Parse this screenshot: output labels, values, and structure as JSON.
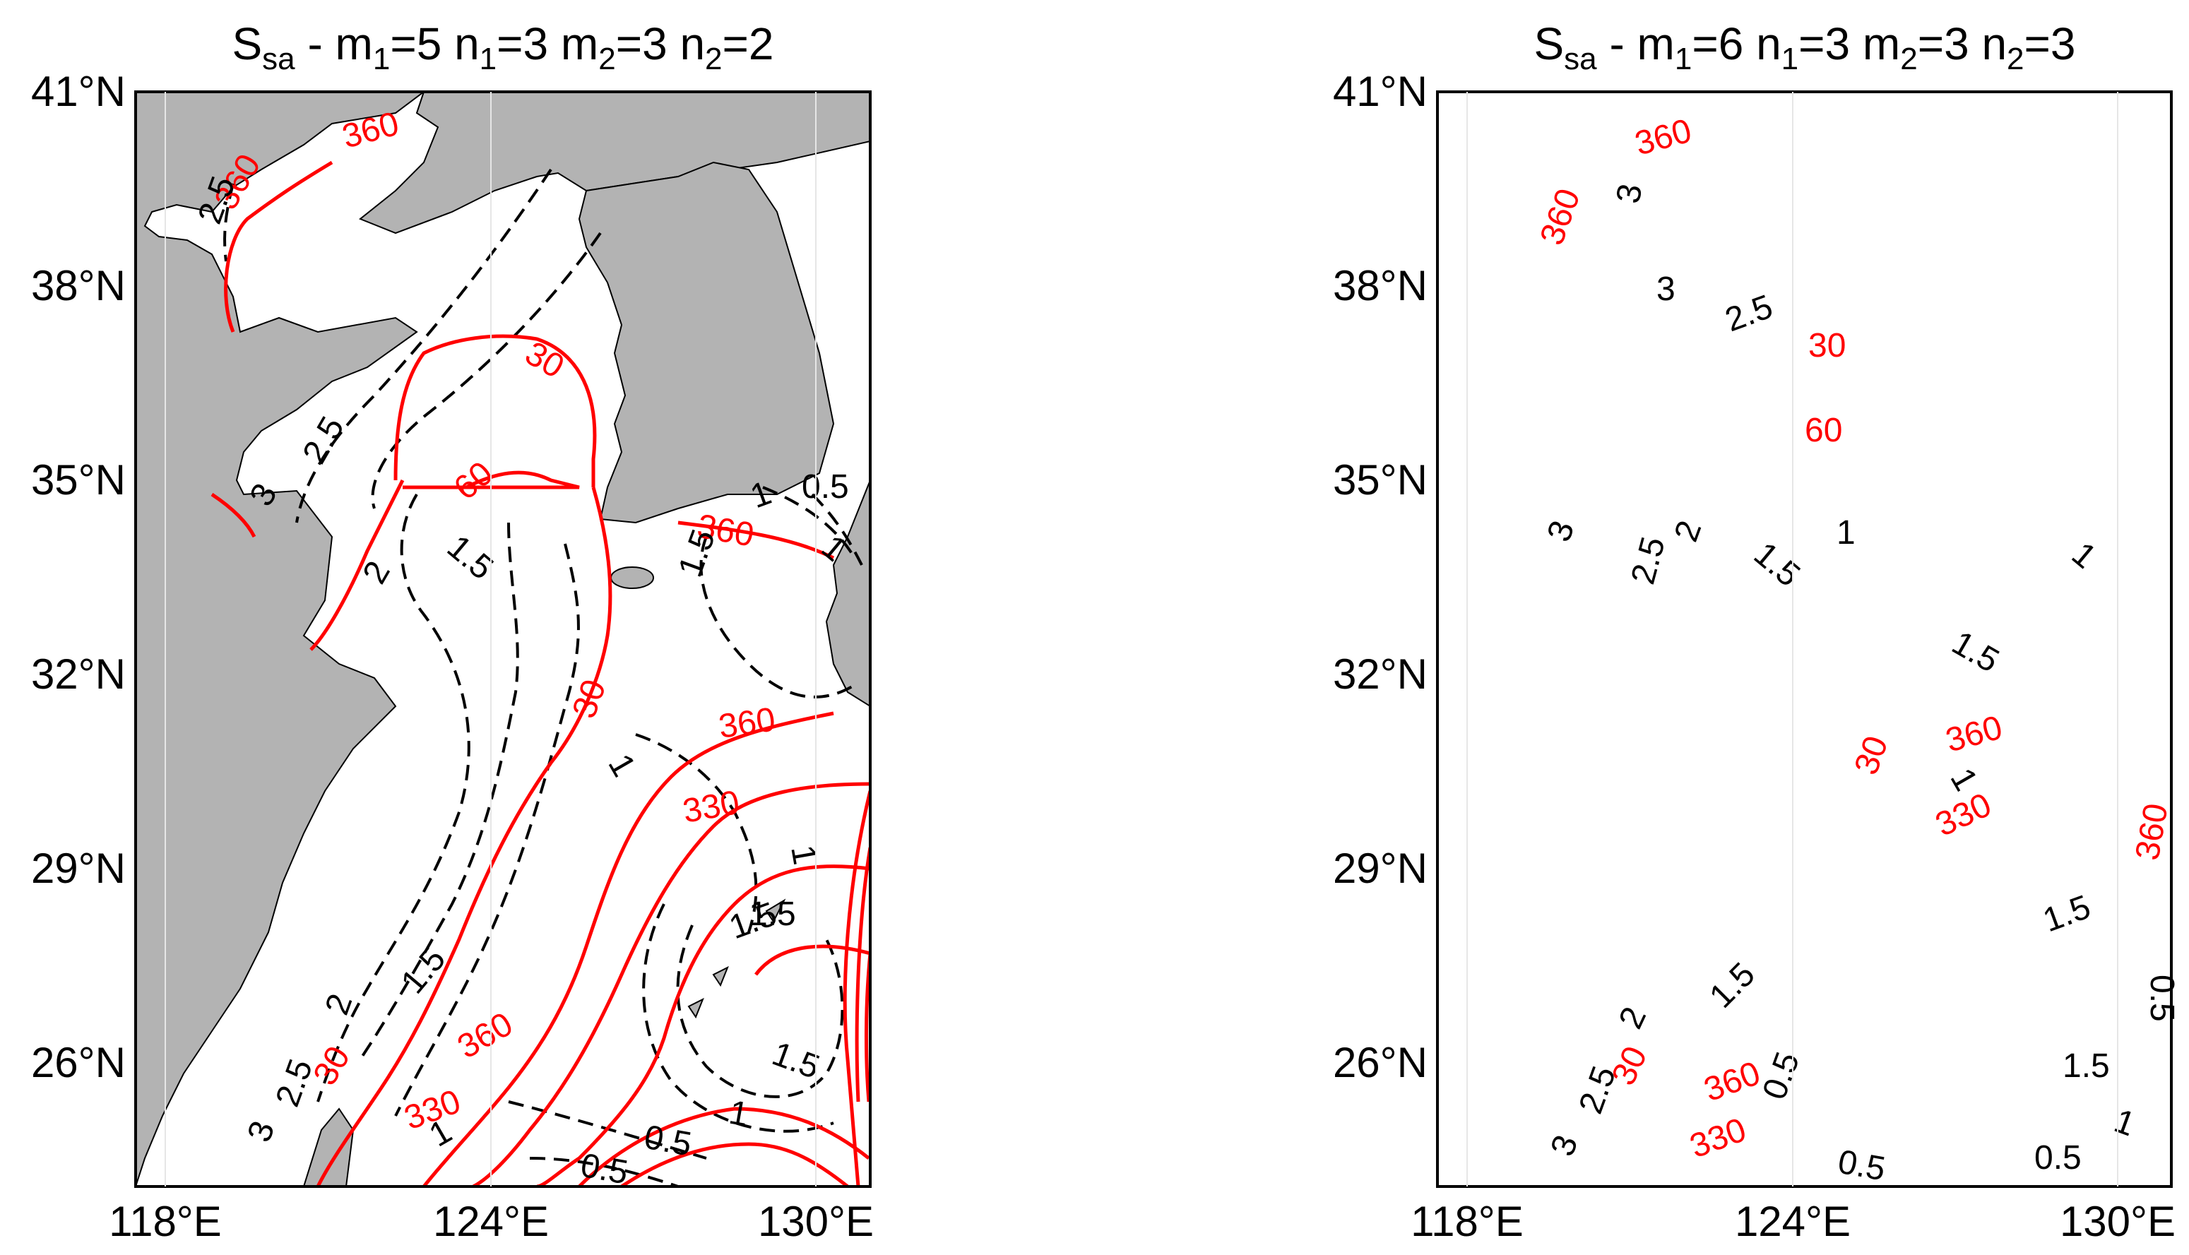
{
  "panels": [
    {
      "title": {
        "main": "S",
        "sub": "sa",
        "rest": " - m",
        "p": [
          {
            "sub": "1",
            "after": "=5  n"
          },
          {
            "sub": "1",
            "after": "=3  m"
          },
          {
            "sub": "2",
            "after": "=3  n"
          },
          {
            "sub": "2",
            "after": "=2"
          }
        ]
      },
      "lat_ticks": [
        "41°N",
        "38°N",
        "35°N",
        "32°N",
        "29°N",
        "26°N"
      ],
      "lon_ticks": [
        "118°E",
        "124°E",
        "130°E"
      ],
      "red_labels": [
        "360",
        "360",
        "30",
        "60",
        "360",
        "30",
        "360",
        "330",
        "30",
        "360",
        "330"
      ],
      "black_labels": [
        "2.5",
        "2.5",
        "3",
        "2",
        "1.5",
        "1.5",
        "1",
        "0.5",
        "1",
        "1",
        "1.5",
        "1",
        "2",
        "1.5",
        "2.5",
        "3",
        "1.5",
        "1",
        "0.5",
        "0.5",
        "1",
        "1.5"
      ]
    },
    {
      "title": {
        "main": "S",
        "sub": "sa",
        "rest": " - m",
        "p": [
          {
            "sub": "1",
            "after": "=6  n"
          },
          {
            "sub": "1",
            "after": "=3  m"
          },
          {
            "sub": "2",
            "after": "=3  n"
          },
          {
            "sub": "2",
            "after": "=3"
          }
        ]
      },
      "lat_ticks": [
        "41°N",
        "38°N",
        "35°N",
        "32°N",
        "29°N",
        "26°N"
      ],
      "lon_ticks": [
        "118°E",
        "124°E",
        "130°E"
      ],
      "red_labels": [
        "360",
        "360",
        "30",
        "60",
        "30",
        "360",
        "330",
        "360",
        "30",
        "360",
        "330"
      ],
      "black_labels": [
        "3",
        "3",
        "2.5",
        "3",
        "2.5",
        "2",
        "1.5",
        "1",
        "1",
        "1.5",
        "1",
        "2",
        "1.5",
        "2.5",
        "3",
        "0.5",
        "0.5",
        "0.5",
        "1.5",
        "1",
        "1.5",
        "0.5"
      ]
    }
  ],
  "colors": {
    "land": "#b3b3b3",
    "sea": "#ffffff",
    "red_contour": "#ff0000",
    "black_contour": "#000000"
  }
}
